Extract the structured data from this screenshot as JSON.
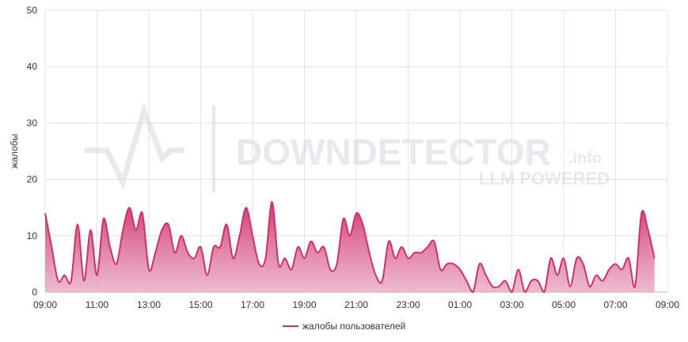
{
  "chart_data": {
    "type": "area",
    "ylabel": "жалобы",
    "watermark": {
      "brand": "DOWNDETECTOR",
      "suffix": ".info",
      "tagline": "LLM POWERED"
    },
    "xlim": [
      0,
      24
    ],
    "xticks": [
      {
        "value": 0,
        "label": "09:00"
      },
      {
        "value": 2,
        "label": "11:00"
      },
      {
        "value": 4,
        "label": "13:00"
      },
      {
        "value": 6,
        "label": "15:00"
      },
      {
        "value": 8,
        "label": "17:00"
      },
      {
        "value": 10,
        "label": "19:00"
      },
      {
        "value": 12,
        "label": "21:00"
      },
      {
        "value": 14,
        "label": "23:00"
      },
      {
        "value": 16,
        "label": "01:00"
      },
      {
        "value": 18,
        "label": "03:00"
      },
      {
        "value": 20,
        "label": "05:00"
      },
      {
        "value": 22,
        "label": "07:00"
      },
      {
        "value": 24,
        "label": "09:00"
      }
    ],
    "ylim": [
      0,
      50
    ],
    "yticks": [
      0,
      10,
      20,
      30,
      40,
      50
    ],
    "grid": true,
    "legend": "bottom",
    "x": [
      0,
      0.25,
      0.5,
      0.75,
      1,
      1.25,
      1.5,
      1.75,
      2,
      2.25,
      2.5,
      2.75,
      3,
      3.25,
      3.5,
      3.75,
      4,
      4.25,
      4.5,
      4.75,
      5,
      5.25,
      5.5,
      5.75,
      6,
      6.25,
      6.5,
      6.75,
      7,
      7.25,
      7.5,
      7.75,
      8,
      8.25,
      8.5,
      8.75,
      9,
      9.25,
      9.5,
      9.75,
      10,
      10.25,
      10.5,
      10.75,
      11,
      11.25,
      11.5,
      11.75,
      12,
      12.25,
      12.5,
      12.75,
      13,
      13.25,
      13.5,
      13.75,
      14,
      14.25,
      14.5,
      14.75,
      15,
      15.25,
      15.5,
      15.75,
      16,
      16.25,
      16.5,
      16.75,
      17,
      17.25,
      17.5,
      17.75,
      18,
      18.25,
      18.5,
      18.75,
      19,
      19.25,
      19.5,
      19.75,
      20,
      20.25,
      20.5,
      20.75,
      21,
      21.25,
      21.5,
      21.75,
      22,
      22.25,
      22.5,
      22.75,
      23,
      23.25,
      23.5
    ],
    "series": [
      {
        "name": "жалобы пользователей",
        "color": "#d1306a",
        "values": [
          14,
          8,
          2,
          3,
          2,
          12,
          2,
          11,
          3,
          13,
          8,
          5,
          11,
          15,
          11,
          14,
          4,
          7,
          11,
          12,
          7,
          10,
          7,
          6,
          8,
          3,
          8,
          8,
          12,
          6,
          10,
          15,
          10,
          5,
          6,
          16,
          5,
          6,
          4,
          8,
          6,
          9,
          7,
          8,
          4,
          5,
          13,
          10,
          14,
          12,
          7,
          3,
          2,
          9,
          6,
          8,
          6,
          7,
          7,
          8,
          9,
          4,
          5,
          5,
          4,
          2,
          0,
          5,
          3,
          1,
          1,
          2,
          0,
          4,
          0,
          2,
          2,
          0,
          6,
          3,
          6,
          1,
          6,
          5,
          1,
          3,
          2,
          4,
          5,
          4,
          6,
          1,
          14,
          11,
          6
        ]
      }
    ]
  }
}
